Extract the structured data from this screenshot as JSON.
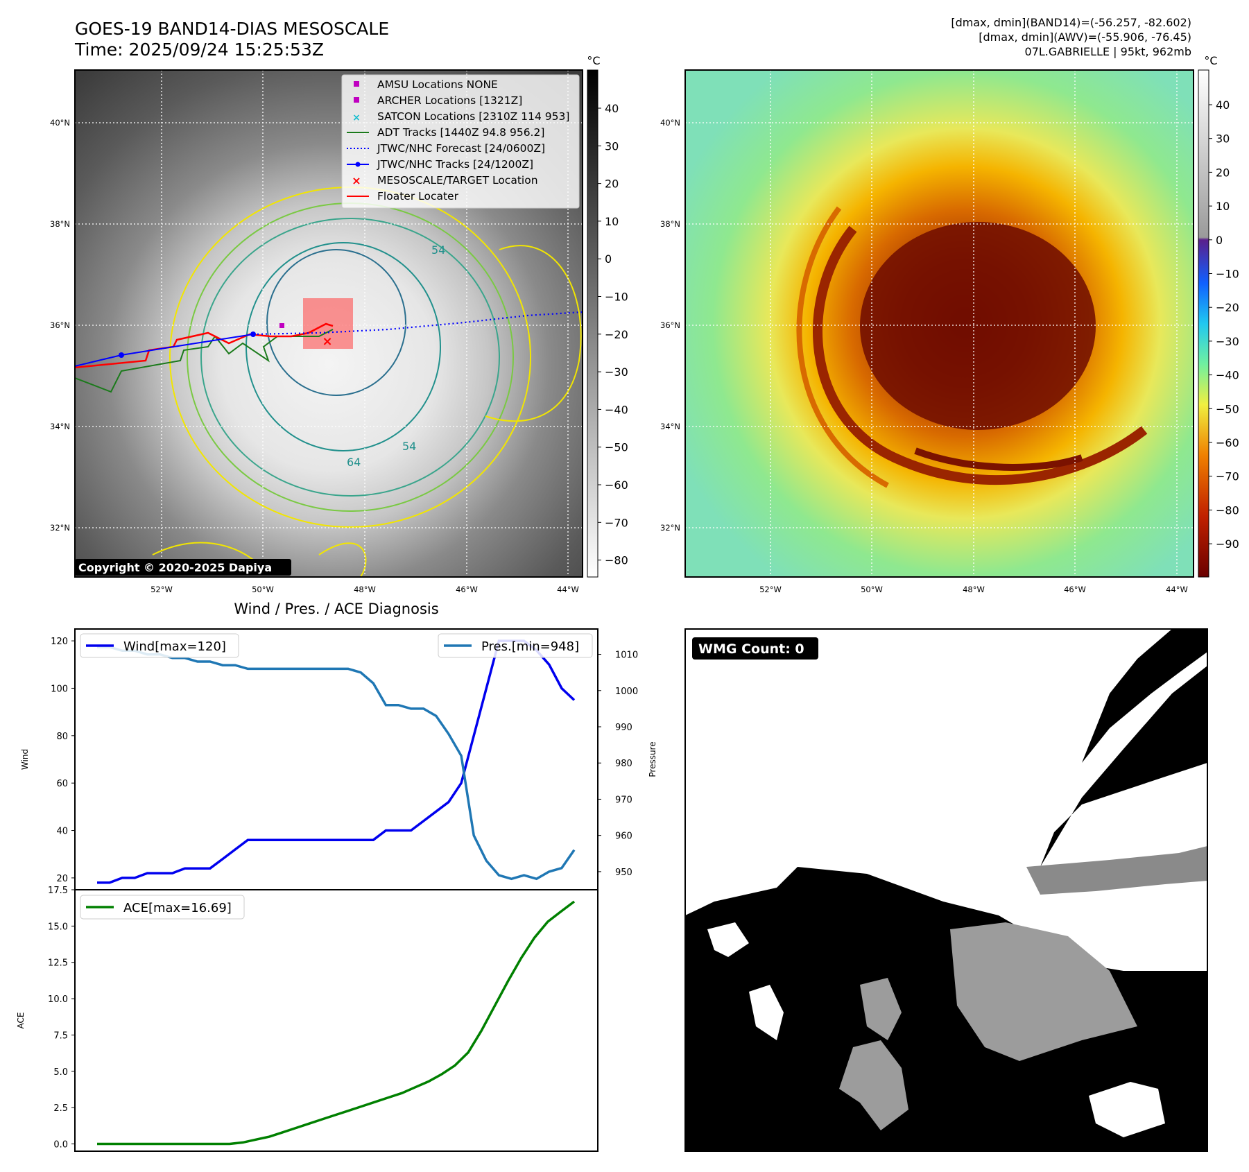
{
  "header": {
    "title_line1": "GOES-19 BAND14-DIAS MESOSCALE",
    "title_line2": "Time: 2025/09/24 15:25:53Z",
    "info_line1": "[dmax, dmin](BAND14)=(-56.257, -82.602)",
    "info_line2": "[dmax, dmin](AWV)=(-55.906, -76.45)",
    "info_line3": "07L.GABRIELLE | 95kt, 962mb"
  },
  "ir_map": {
    "copyright": "Copyright © 2020-2025 Dapiya",
    "colorbar_unit": "°C",
    "colorbar_ticks": [
      "40",
      "30",
      "20",
      "10",
      "0",
      "−10",
      "−20",
      "−30",
      "−40",
      "−50",
      "−60",
      "−70",
      "−80"
    ],
    "lon_ticks": [
      "52°W",
      "50°W",
      "48°W",
      "46°W",
      "44°W"
    ],
    "lat_ticks": [
      "40°N",
      "38°N",
      "36°N",
      "34°N",
      "32°N"
    ],
    "contour_labels": [
      "54",
      "54",
      "64"
    ],
    "legend": [
      {
        "label": "AMSU Locations NONE",
        "color": "#c000c0",
        "marker": "square"
      },
      {
        "label": "ARCHER Locations [1321Z]",
        "color": "#c000c0",
        "marker": "square"
      },
      {
        "label": "SATCON Locations [2310Z 114 953]",
        "color": "#17becf",
        "marker": "x"
      },
      {
        "label": "ADT Tracks [1440Z 94.8 956.2]",
        "color": "#1b7a1b",
        "marker": "line"
      },
      {
        "label": "JTWC/NHC Forecast [24/0600Z]",
        "color": "#0000ff",
        "marker": "dotted"
      },
      {
        "label": "JTWC/NHC Tracks [24/1200Z]",
        "color": "#0000ff",
        "marker": "line-dot"
      },
      {
        "label": "MESOSCALE/TARGET Location",
        "color": "#ff0000",
        "marker": "x"
      },
      {
        "label": "Floater Locater",
        "color": "#ff0000",
        "marker": "line"
      }
    ]
  },
  "awv_map": {
    "colorbar_unit": "°C",
    "colorbar_ticks": [
      "40",
      "30",
      "20",
      "10",
      "0",
      "−10",
      "−20",
      "−30",
      "−40",
      "−50",
      "−60",
      "−70",
      "−80",
      "−90"
    ],
    "lon_ticks": [
      "52°W",
      "50°W",
      "48°W",
      "46°W",
      "44°W"
    ],
    "lat_ticks": [
      "40°N",
      "38°N",
      "36°N",
      "34°N",
      "32°N"
    ]
  },
  "wmg": {
    "label": "WMG Count: 0"
  },
  "chart_data": [
    {
      "type": "line",
      "title": "Wind / Pres. / ACE Diagnosis",
      "ylabel": "Wind",
      "ylabel_right": "Pressure",
      "ylim": [
        15,
        125
      ],
      "ylim_right": [
        945,
        1017
      ],
      "yticks": [
        20,
        40,
        60,
        80,
        100,
        120
      ],
      "yticks_right": [
        950,
        960,
        970,
        980,
        990,
        1000,
        1010
      ],
      "series": [
        {
          "name": "Wind[max=120]",
          "axis": "left",
          "color": "#0000ee",
          "values": [
            18,
            18,
            20,
            20,
            22,
            22,
            22,
            24,
            24,
            24,
            28,
            32,
            36,
            36,
            36,
            36,
            36,
            36,
            36,
            36,
            36,
            36,
            36,
            40,
            40,
            40,
            44,
            48,
            52,
            60,
            80,
            100,
            120,
            120,
            120,
            116,
            110,
            100,
            95
          ]
        },
        {
          "name": "Pres.[min=948]",
          "axis": "right",
          "color": "#1f77b4",
          "values": [
            1012,
            1012,
            1011,
            1011,
            1010,
            1010,
            1009,
            1009,
            1008,
            1008,
            1007,
            1007,
            1006,
            1006,
            1006,
            1006,
            1006,
            1006,
            1006,
            1006,
            1006,
            1005,
            1002,
            996,
            996,
            995,
            995,
            993,
            988,
            982,
            960,
            953,
            949,
            948,
            949,
            948,
            950,
            951,
            956
          ]
        }
      ]
    },
    {
      "type": "line",
      "title": "",
      "ylabel": "ACE",
      "ylim": [
        -0.5,
        17.5
      ],
      "yticks": [
        0.0,
        2.5,
        5.0,
        7.5,
        10.0,
        12.5,
        15.0,
        17.5
      ],
      "ytick_labels": [
        "0.0",
        "2.5",
        "5.0",
        "7.5",
        "10.0",
        "12.5",
        "15.0",
        "17.5"
      ],
      "series": [
        {
          "name": "ACE[max=16.69]",
          "color": "#008000",
          "values": [
            0,
            0,
            0,
            0,
            0,
            0,
            0,
            0,
            0,
            0,
            0,
            0.1,
            0.3,
            0.5,
            0.8,
            1.1,
            1.4,
            1.7,
            2.0,
            2.3,
            2.6,
            2.9,
            3.2,
            3.5,
            3.9,
            4.3,
            4.8,
            5.4,
            6.3,
            7.8,
            9.5,
            11.2,
            12.8,
            14.2,
            15.3,
            16.0,
            16.69
          ]
        }
      ]
    }
  ]
}
